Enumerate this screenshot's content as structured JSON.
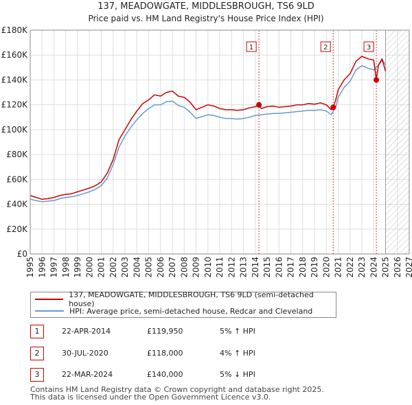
{
  "title": "137, MEADOWGATE, MIDDLESBROUGH, TS6 9LD",
  "subtitle": "Price paid vs. HM Land Registry's House Price Index (HPI)",
  "colors": {
    "property": "#cc0000",
    "hpi": "#6699cc",
    "grid": "#dddddd",
    "hatch": "#bbbbbb"
  },
  "chart_data": {
    "type": "line",
    "title": "137, MEADOWGATE, MIDDLESBROUGH, TS6 9LD",
    "subtitle": "Price paid vs. HM Land Registry's House Price Index (HPI)",
    "xlim": [
      1995,
      2027
    ],
    "ylim": [
      0,
      180000
    ],
    "y_ticks": [
      0,
      20000,
      40000,
      60000,
      80000,
      100000,
      120000,
      140000,
      160000,
      180000
    ],
    "y_tick_labels": [
      "£0",
      "£20K",
      "£40K",
      "£60K",
      "£80K",
      "£100K",
      "£120K",
      "£140K",
      "£160K",
      "£180K"
    ],
    "x_ticks": [
      "1995",
      "1996",
      "1997",
      "1998",
      "1999",
      "2000",
      "2001",
      "2002",
      "2003",
      "2004",
      "2005",
      "2006",
      "2007",
      "2008",
      "2009",
      "2010",
      "2011",
      "2012",
      "2013",
      "2014",
      "2015",
      "2016",
      "2017",
      "2018",
      "2019",
      "2020",
      "2021",
      "2022",
      "2023",
      "2024",
      "2025",
      "2026",
      "2027"
    ],
    "forecast_start": 2025.0,
    "series": [
      {
        "name": "137, MEADOWGATE, MIDDLESBROUGH, TS6 9LD (semi-detached house)",
        "color": "#cc0000",
        "x": [
          1995.0,
          1995.5,
          1996.0,
          1996.5,
          1997.0,
          1997.5,
          1998.0,
          1998.5,
          1999.0,
          1999.5,
          2000.0,
          2000.5,
          2001.0,
          2001.5,
          2002.0,
          2002.5,
          2003.0,
          2003.5,
          2004.0,
          2004.5,
          2005.0,
          2005.5,
          2006.0,
          2006.5,
          2007.0,
          2007.5,
          2008.0,
          2008.5,
          2009.0,
          2009.5,
          2010.0,
          2010.5,
          2011.0,
          2011.5,
          2012.0,
          2012.5,
          2013.0,
          2013.5,
          2014.0,
          2014.31,
          2014.5,
          2015.0,
          2015.5,
          2016.0,
          2016.5,
          2017.0,
          2017.5,
          2018.0,
          2018.5,
          2019.0,
          2019.5,
          2020.0,
          2020.4,
          2020.58,
          2020.8,
          2021.0,
          2021.5,
          2022.0,
          2022.5,
          2023.0,
          2023.5,
          2024.0,
          2024.22,
          2024.4,
          2024.7,
          2025.0
        ],
        "values": [
          47000,
          45500,
          44000,
          44500,
          45500,
          47000,
          48000,
          48500,
          50000,
          51500,
          53000,
          55000,
          58000,
          65000,
          76000,
          92000,
          100000,
          108000,
          115000,
          121000,
          124000,
          128000,
          127000,
          130000,
          131000,
          127000,
          126000,
          122000,
          116000,
          118000,
          120000,
          119000,
          117000,
          116000,
          116000,
          115500,
          116000,
          117500,
          118500,
          119950,
          117000,
          118500,
          119000,
          118000,
          118500,
          119000,
          120000,
          120000,
          121000,
          120500,
          121500,
          120000,
          116000,
          118000,
          124000,
          132000,
          140000,
          145000,
          155000,
          159000,
          157000,
          156000,
          140000,
          152000,
          157000,
          147000
        ]
      },
      {
        "name": "HPI: Average price, semi-detached house, Redcar and Cleveland",
        "color": "#6699cc",
        "x": [
          1995.0,
          1995.5,
          1996.0,
          1996.5,
          1997.0,
          1997.5,
          1998.0,
          1998.5,
          1999.0,
          1999.5,
          2000.0,
          2000.5,
          2001.0,
          2001.5,
          2002.0,
          2002.5,
          2003.0,
          2003.5,
          2004.0,
          2004.5,
          2005.0,
          2005.5,
          2006.0,
          2006.5,
          2007.0,
          2007.5,
          2008.0,
          2008.5,
          2009.0,
          2009.5,
          2010.0,
          2010.5,
          2011.0,
          2011.5,
          2012.0,
          2012.5,
          2013.0,
          2013.5,
          2014.0,
          2014.5,
          2015.0,
          2015.5,
          2016.0,
          2016.5,
          2017.0,
          2017.5,
          2018.0,
          2018.5,
          2019.0,
          2019.5,
          2020.0,
          2020.4,
          2020.8,
          2021.0,
          2021.5,
          2022.0,
          2022.5,
          2023.0,
          2023.5,
          2024.0,
          2024.5,
          2024.75,
          2025.0
        ],
        "values": [
          44000,
          43000,
          42000,
          42500,
          43000,
          44500,
          45500,
          46000,
          47000,
          48500,
          50000,
          52000,
          55000,
          61000,
          72000,
          86000,
          95000,
          102000,
          108000,
          113000,
          117000,
          120000,
          120000,
          122500,
          123000,
          119500,
          118000,
          114000,
          109000,
          110500,
          112000,
          111500,
          110000,
          109000,
          109000,
          108500,
          109000,
          110000,
          111500,
          112000,
          112500,
          113000,
          113000,
          113500,
          114000,
          114500,
          115000,
          115500,
          115500,
          116000,
          115000,
          112000,
          118000,
          126000,
          134000,
          139000,
          148000,
          151500,
          149500,
          148000,
          153000,
          156000,
          152000
        ]
      }
    ],
    "transactions": [
      {
        "num": "1",
        "x": 2014.31,
        "value": 119950
      },
      {
        "num": "2",
        "x": 2020.58,
        "value": 118000
      },
      {
        "num": "3",
        "x": 2024.22,
        "value": 140000
      }
    ]
  },
  "legend": {
    "property": "137, MEADOWGATE, MIDDLESBROUGH, TS6 9LD (semi-detached house)",
    "hpi": "HPI: Average price, semi-detached house, Redcar and Cleveland"
  },
  "transactions_table": [
    {
      "num": "1",
      "date": "22-APR-2014",
      "price": "£119,950",
      "hpi": "5% ↑ HPI"
    },
    {
      "num": "2",
      "date": "30-JUL-2020",
      "price": "£118,000",
      "hpi": "4% ↑ HPI"
    },
    {
      "num": "3",
      "date": "22-MAR-2024",
      "price": "£140,000",
      "hpi": "5% ↓ HPI"
    }
  ],
  "footer": {
    "line1": "Contains HM Land Registry data © Crown copyright and database right 2025.",
    "line2": "This data is licensed under the Open Government Licence v3.0."
  }
}
